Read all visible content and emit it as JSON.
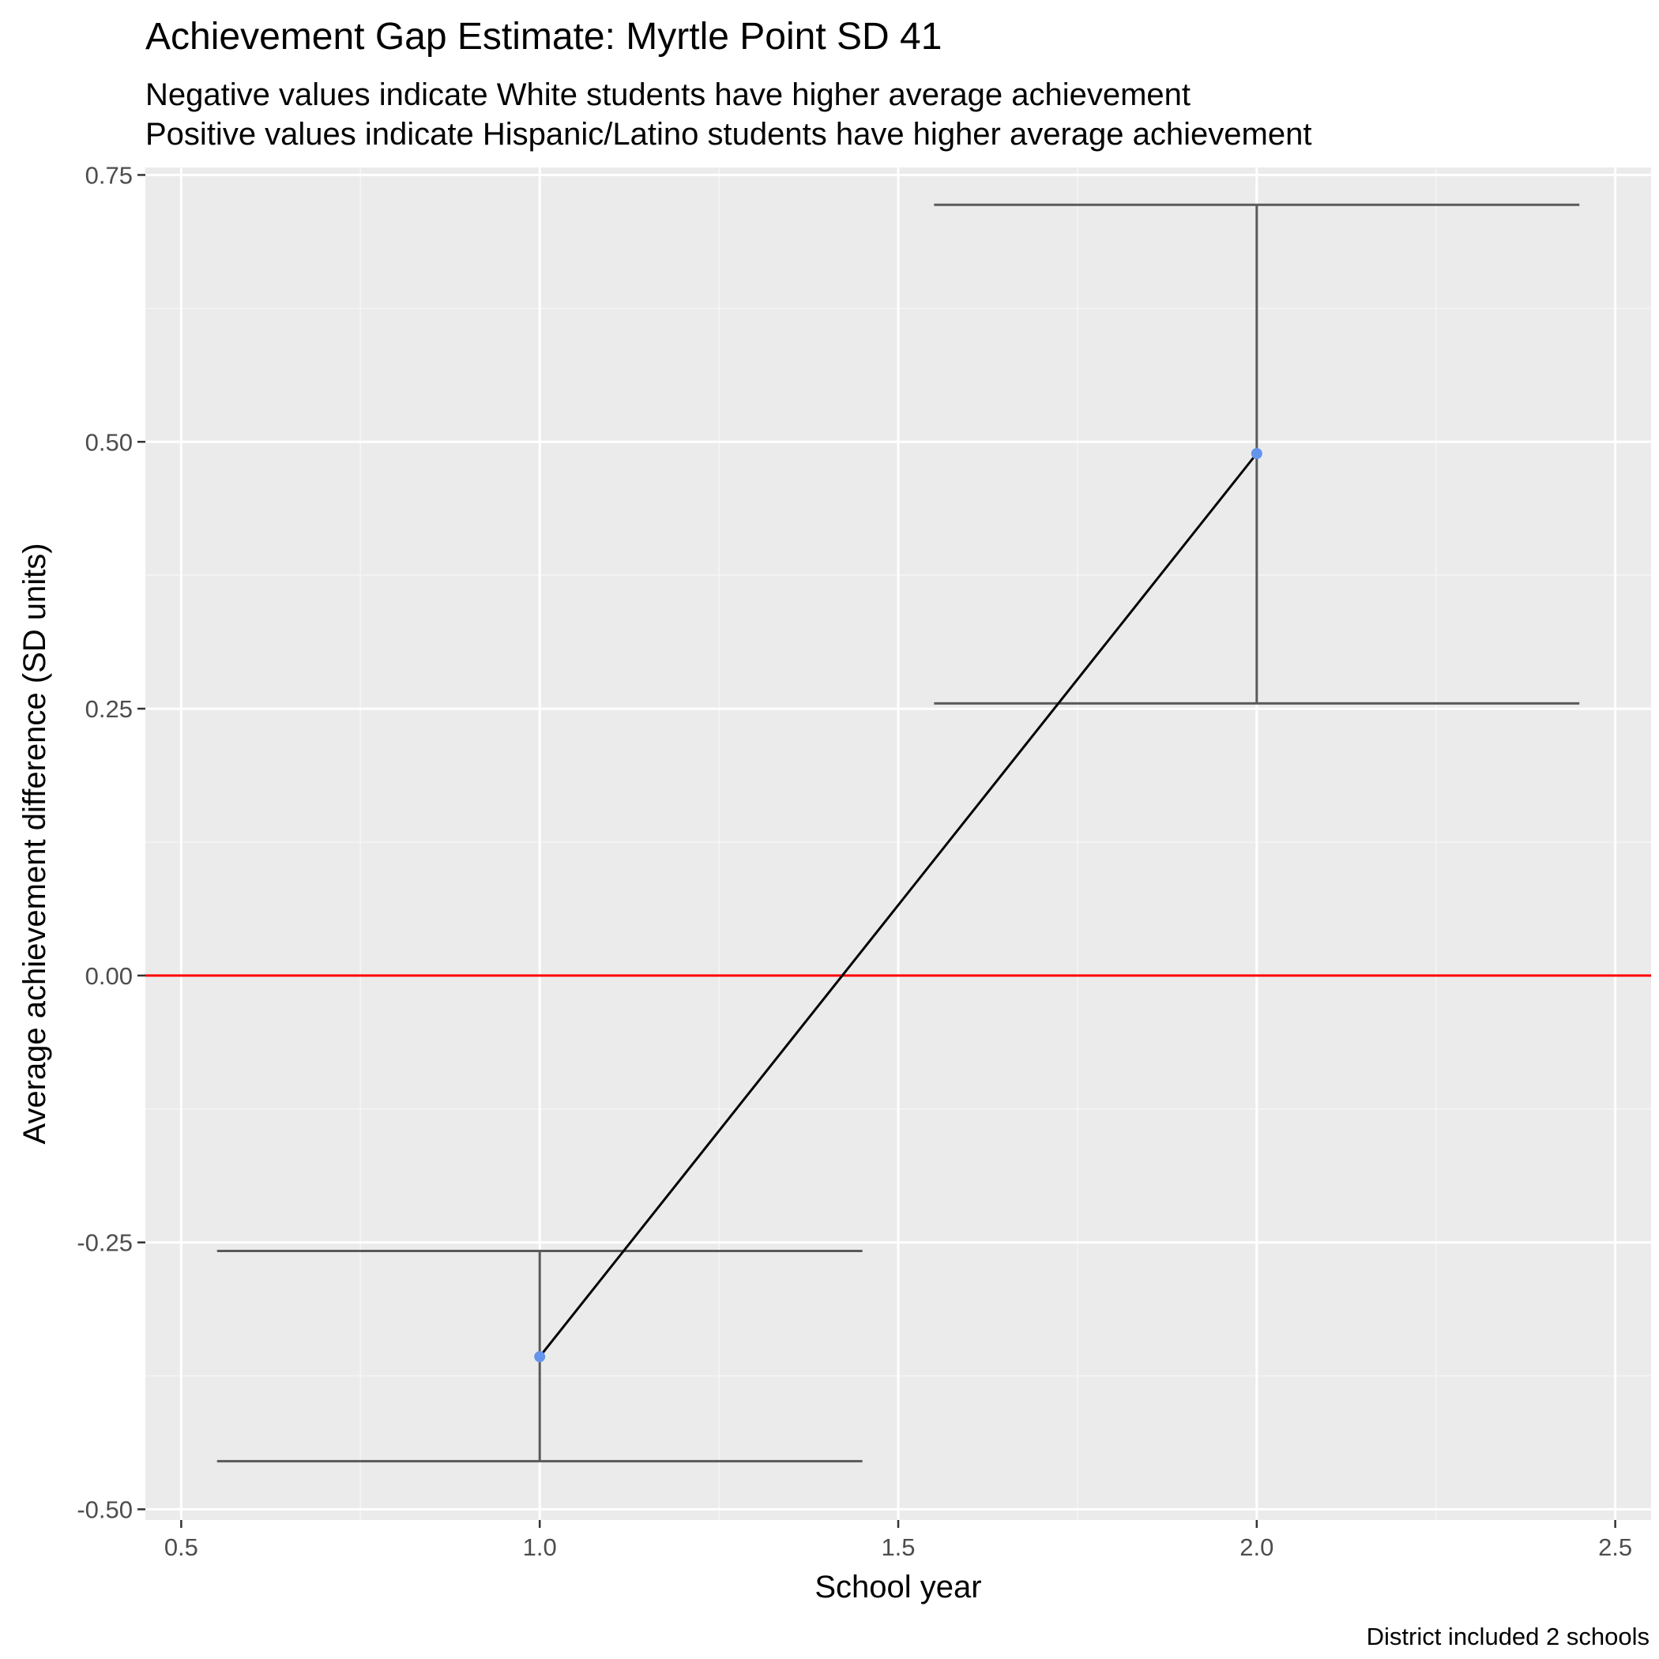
{
  "chart_data": {
    "type": "line",
    "title": "Achievement Gap Estimate: Myrtle Point SD 41",
    "subtitle_lines": [
      "Negative values indicate White students have higher average achievement",
      "Positive values indicate Hispanic/Latino students have higher average achievement"
    ],
    "xlabel": "School year",
    "ylabel": "Average achievement difference (SD units)",
    "caption": "District included 2 schools",
    "xlim": [
      0.45,
      2.55
    ],
    "ylim": [
      -0.51,
      0.757
    ],
    "x_ticks": [
      0.5,
      1.0,
      1.5,
      2.0,
      2.5
    ],
    "x_tick_labels": [
      "0.5",
      "1.0",
      "1.5",
      "2.0",
      "2.5"
    ],
    "y_ticks": [
      -0.5,
      -0.25,
      0.0,
      0.25,
      0.5,
      0.75
    ],
    "y_tick_labels": [
      "-0.50",
      "-0.25",
      "0.00",
      "0.25",
      "0.50",
      "0.75"
    ],
    "grid": true,
    "reference_line": {
      "y": 0.0,
      "color": "#ff0000"
    },
    "series": [
      {
        "points": [
          {
            "x": 1.0,
            "y": -0.357,
            "lower": -0.455,
            "upper": -0.258
          },
          {
            "x": 2.0,
            "y": 0.489,
            "lower": 0.255,
            "upper": 0.722
          }
        ],
        "errorbar_halfwidth": 0.45,
        "line_color": "#000000",
        "point_color": "#6495ed",
        "errorbar_color": "#5a5a5a"
      }
    ],
    "colors": {
      "panel_background": "#ebebeb",
      "grid_major": "#ffffff",
      "grid_minor": "#f5f5f5",
      "tick_label": "#4d4d4d"
    }
  }
}
